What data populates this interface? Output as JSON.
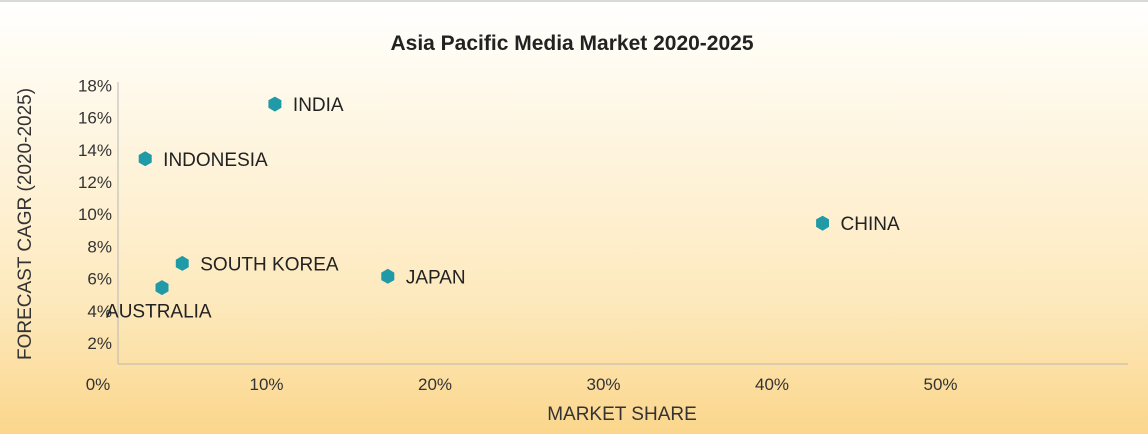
{
  "chart_data": {
    "type": "scatter",
    "title": "Asia Pacific Media Market 2020-2025",
    "xlabel": "MARKET SHARE",
    "ylabel": "FORECAST CAGR (2020-2025)",
    "xlim": [
      0,
      60
    ],
    "ylim": [
      0,
      18
    ],
    "xticks": [
      "0%",
      "10%",
      "20%",
      "30%",
      "40%",
      "50%"
    ],
    "xtick_values": [
      0,
      10,
      20,
      30,
      40,
      50
    ],
    "yticks": [
      "18%",
      "16%",
      "14%",
      "12%",
      "10%",
      "8%",
      "6%",
      "4%",
      "2%"
    ],
    "ytick_values": [
      18,
      16,
      14,
      12,
      10,
      8,
      6,
      4,
      2
    ],
    "grid": false,
    "marker_color": "#1f9aa6",
    "points": [
      {
        "label": "INDIA",
        "x": 10.5,
        "y": 17.4,
        "label_side": "right"
      },
      {
        "label": "INDONESIA",
        "x": 2.8,
        "y": 14.0,
        "label_side": "right"
      },
      {
        "label": "CHINA",
        "x": 43.0,
        "y": 10.0,
        "label_side": "right"
      },
      {
        "label": "SOUTH KOREA",
        "x": 5.0,
        "y": 7.5,
        "label_side": "right"
      },
      {
        "label": "JAPAN",
        "x": 17.2,
        "y": 6.7,
        "label_side": "right"
      },
      {
        "label": "AUSTRALIA",
        "x": 3.8,
        "y": 6.0,
        "label_side": "below"
      }
    ]
  }
}
